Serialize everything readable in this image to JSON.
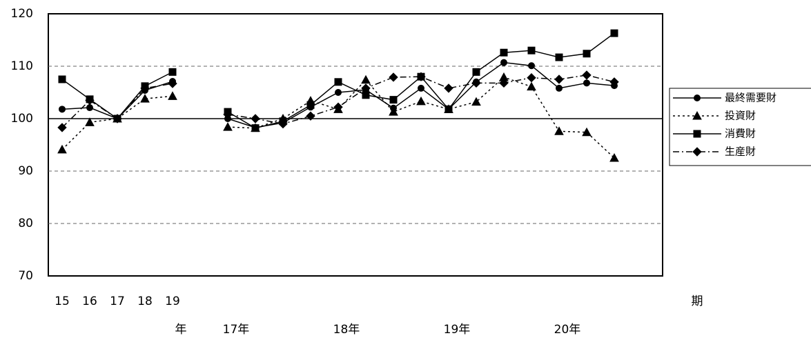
{
  "chart_data": {
    "type": "line",
    "x_label": "期",
    "categories": [
      "15",
      "16",
      "17",
      "18",
      "19",
      null,
      null,
      null,
      null,
      null,
      null,
      null,
      null,
      null,
      null,
      null,
      null,
      null,
      null,
      null,
      null
    ],
    "categories2": [
      null,
      null,
      null,
      null,
      "年",
      null,
      "17年",
      null,
      null,
      null,
      "18年",
      null,
      null,
      null,
      "19年",
      null,
      null,
      null,
      "20年",
      null,
      null
    ],
    "ylim": [
      70,
      120
    ],
    "yticks": [
      70,
      80,
      90,
      100,
      110,
      120
    ],
    "grid": true,
    "baseline": 100,
    "legend": "right",
    "series": [
      {
        "name": "最終需要財",
        "color": "#000000",
        "marker": "circle",
        "dash": "solid",
        "values": [
          101.8,
          102.1,
          100,
          105.4,
          107.1,
          null,
          100,
          98.3,
          99.2,
          102.2,
          105.0,
          105.5,
          102.0,
          105.8,
          101.8,
          107.0,
          110.7,
          110.1,
          105.8,
          106.8,
          106.3
        ]
      },
      {
        "name": "投資財",
        "color": "#000000",
        "marker": "triangle",
        "dash": "dotted",
        "values": [
          94.1,
          99.3,
          100,
          103.8,
          104.3,
          null,
          98.4,
          98.2,
          100,
          103.4,
          101.8,
          107.4,
          101.3,
          103.3,
          101.8,
          103.2,
          107.9,
          106.1,
          97.6,
          97.4,
          92.5
        ]
      },
      {
        "name": "消費財",
        "color": "#000000",
        "marker": "square",
        "dash": "solid",
        "values": [
          107.5,
          103.7,
          100,
          106.2,
          108.9,
          null,
          101.3,
          98.2,
          99.5,
          102.6,
          107.0,
          104.5,
          103.6,
          108.0,
          101.8,
          108.9,
          112.6,
          113.0,
          111.7,
          112.4,
          116.3
        ]
      },
      {
        "name": "生産財",
        "color": "#000000",
        "marker": "diamond",
        "dash": "dash-dot",
        "values": [
          98.3,
          103.5,
          100,
          105.8,
          106.7,
          null,
          100.8,
          100,
          99,
          100.5,
          102.2,
          105.8,
          107.9,
          108.0,
          105.8,
          106.8,
          106.8,
          107.8,
          107.5,
          108.3,
          107.0
        ]
      }
    ]
  }
}
